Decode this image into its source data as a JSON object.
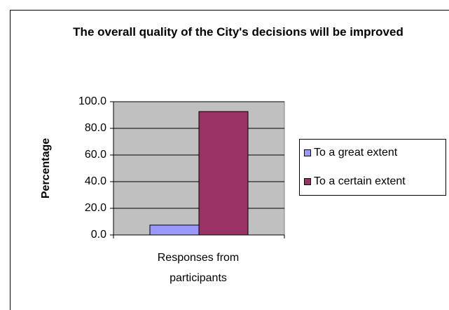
{
  "chart_data": {
    "type": "bar",
    "title": "The overall quality of the City's decisions will be improved",
    "y_label": "Percentage",
    "categories": [
      "Responses from participants"
    ],
    "series": [
      {
        "name": "To a great extent",
        "color": "#9999ff",
        "values": [
          7.4
        ]
      },
      {
        "name": "To a certain extent",
        "color": "#993366",
        "values": [
          92.6
        ]
      }
    ],
    "ylim": [
      0,
      100
    ],
    "yticks": [
      {
        "value": 0,
        "label": "0.0"
      },
      {
        "value": 20,
        "label": "20.0"
      },
      {
        "value": 40,
        "label": "40.0"
      },
      {
        "value": 60,
        "label": "60.0"
      },
      {
        "value": 80,
        "label": "80.0"
      },
      {
        "value": 100,
        "label": "100.0"
      }
    ],
    "grid": true,
    "legend": "right",
    "plot_background": "#c0c0c0"
  }
}
